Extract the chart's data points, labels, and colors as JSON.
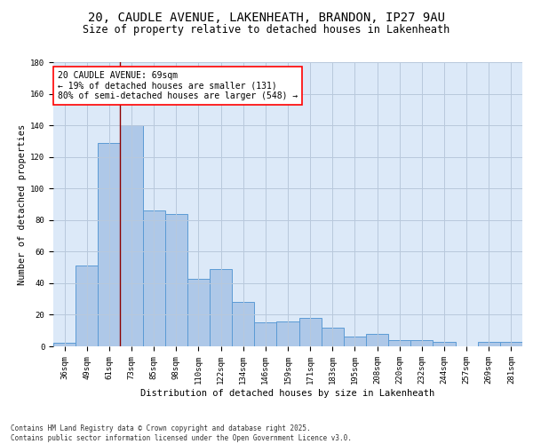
{
  "title1": "20, CAUDLE AVENUE, LAKENHEATH, BRANDON, IP27 9AU",
  "title2": "Size of property relative to detached houses in Lakenheath",
  "xlabel": "Distribution of detached houses by size in Lakenheath",
  "ylabel": "Number of detached properties",
  "footer1": "Contains HM Land Registry data © Crown copyright and database right 2025.",
  "footer2": "Contains public sector information licensed under the Open Government Licence v3.0.",
  "categories": [
    "36sqm",
    "49sqm",
    "61sqm",
    "73sqm",
    "85sqm",
    "98sqm",
    "110sqm",
    "122sqm",
    "134sqm",
    "146sqm",
    "159sqm",
    "171sqm",
    "183sqm",
    "195sqm",
    "208sqm",
    "220sqm",
    "232sqm",
    "244sqm",
    "257sqm",
    "269sqm",
    "281sqm"
  ],
  "values": [
    2,
    51,
    129,
    140,
    86,
    84,
    43,
    49,
    28,
    15,
    16,
    18,
    12,
    6,
    8,
    4,
    4,
    3,
    0,
    3,
    3
  ],
  "bar_color": "#aec8e8",
  "bar_edge_color": "#5b9bd5",
  "bg_color": "#dce9f8",
  "annotation_text": "20 CAUDLE AVENUE: 69sqm\n← 19% of detached houses are smaller (131)\n80% of semi-detached houses are larger (548) →",
  "vline_x": 2.5,
  "ylim": [
    0,
    180
  ],
  "yticks": [
    0,
    20,
    40,
    60,
    80,
    100,
    120,
    140,
    160,
    180
  ],
  "grid_color": "#b8c8dc",
  "title_fontsize": 10,
  "subtitle_fontsize": 8.5,
  "axis_label_fontsize": 7.5,
  "tick_fontsize": 6.5,
  "annotation_fontsize": 7
}
